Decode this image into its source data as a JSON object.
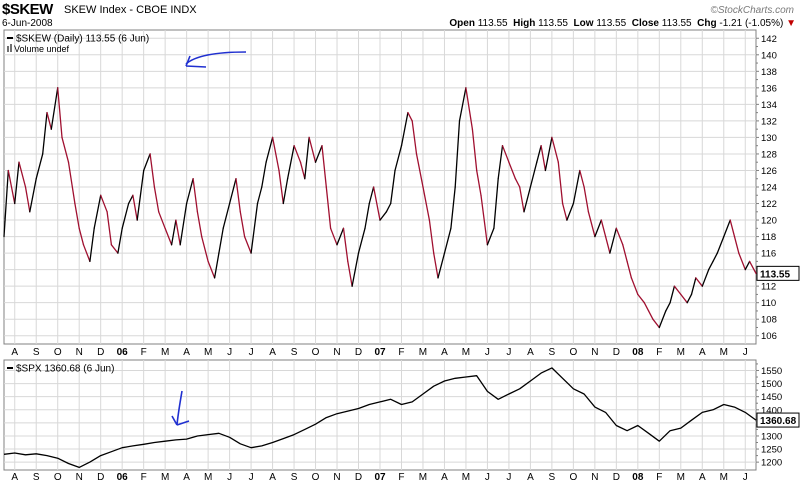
{
  "header": {
    "symbol": "$SKEW",
    "index_name": "SKEW Index - CBOE  INDX",
    "date": "6-Jun-2008",
    "brand": "©StockCharts.com",
    "open_label": "Open",
    "open": "113.55",
    "high_label": "High",
    "high": "113.55",
    "low_label": "Low",
    "low": "113.55",
    "close_label": "Close",
    "close": "113.55",
    "chg_label": "Chg",
    "chg": "-1.21 (-1.05%)"
  },
  "chart_data": [
    {
      "type": "line",
      "legend": "$SKEW (Daily) 113.55 (6 Jun)",
      "sub_legend": "Volume undef",
      "last_value_label": "113.55",
      "ylim": [
        105,
        143
      ],
      "y_ticks": [
        "106",
        "108",
        "110",
        "112",
        "114",
        "116",
        "118",
        "120",
        "122",
        "124",
        "126",
        "128",
        "130",
        "132",
        "134",
        "136",
        "138",
        "140",
        "142"
      ],
      "x_ticks": [
        "A",
        "S",
        "O",
        "N",
        "D",
        "06",
        "F",
        "M",
        "A",
        "M",
        "J",
        "J",
        "A",
        "S",
        "O",
        "N",
        "D",
        "07",
        "F",
        "M",
        "A",
        "M",
        "J",
        "J",
        "A",
        "S",
        "O",
        "N",
        "D",
        "08",
        "F",
        "M",
        "A",
        "M",
        "J"
      ],
      "x_range": [
        0,
        35
      ],
      "series": [
        {
          "colors": {
            "down": "#a01030",
            "up": "#000000"
          },
          "points": [
            [
              0,
              118
            ],
            [
              0.2,
              126
            ],
            [
              0.5,
              122
            ],
            [
              0.7,
              127
            ],
            [
              1,
              124
            ],
            [
              1.2,
              121
            ],
            [
              1.5,
              125
            ],
            [
              1.8,
              128
            ],
            [
              2,
              133
            ],
            [
              2.2,
              131
            ],
            [
              2.5,
              136
            ],
            [
              2.7,
              130
            ],
            [
              3,
              127
            ],
            [
              3.3,
              122
            ],
            [
              3.5,
              119
            ],
            [
              3.7,
              117
            ],
            [
              4,
              115
            ],
            [
              4.2,
              119
            ],
            [
              4.5,
              123
            ],
            [
              4.8,
              121
            ],
            [
              5,
              117
            ],
            [
              5.3,
              116
            ],
            [
              5.5,
              119
            ],
            [
              5.8,
              122
            ],
            [
              6,
              123
            ],
            [
              6.2,
              120
            ],
            [
              6.5,
              126
            ],
            [
              6.8,
              128
            ],
            [
              7,
              124
            ],
            [
              7.2,
              121
            ],
            [
              7.5,
              119
            ],
            [
              7.8,
              117
            ],
            [
              8,
              120
            ],
            [
              8.2,
              117
            ],
            [
              8.5,
              122
            ],
            [
              8.8,
              125
            ],
            [
              9,
              121
            ],
            [
              9.2,
              118
            ],
            [
              9.5,
              115
            ],
            [
              9.8,
              113
            ],
            [
              10,
              116
            ],
            [
              10.2,
              119
            ],
            [
              10.5,
              122
            ],
            [
              10.8,
              125
            ],
            [
              11,
              121
            ],
            [
              11.2,
              118
            ],
            [
              11.5,
              116
            ],
            [
              11.8,
              122
            ],
            [
              12,
              124
            ],
            [
              12.2,
              127
            ],
            [
              12.5,
              130
            ],
            [
              12.8,
              126
            ],
            [
              13,
              122
            ],
            [
              13.2,
              125
            ],
            [
              13.5,
              129
            ],
            [
              13.8,
              127
            ],
            [
              14,
              125
            ],
            [
              14.2,
              130
            ],
            [
              14.5,
              127
            ],
            [
              14.8,
              129
            ],
            [
              15,
              124
            ],
            [
              15.2,
              119
            ],
            [
              15.5,
              117
            ],
            [
              15.8,
              119
            ],
            [
              16,
              115
            ],
            [
              16.2,
              112
            ],
            [
              16.5,
              116
            ],
            [
              16.8,
              119
            ],
            [
              17,
              122
            ],
            [
              17.2,
              124
            ],
            [
              17.5,
              120
            ],
            [
              17.8,
              121
            ],
            [
              18,
              122
            ],
            [
              18.2,
              126
            ],
            [
              18.5,
              129
            ],
            [
              18.8,
              133
            ],
            [
              19,
              132
            ],
            [
              19.2,
              128
            ],
            [
              19.5,
              124
            ],
            [
              19.8,
              120
            ],
            [
              20,
              116
            ],
            [
              20.2,
              113
            ],
            [
              20.5,
              116
            ],
            [
              20.8,
              119
            ],
            [
              21,
              124
            ],
            [
              21.2,
              132
            ],
            [
              21.5,
              136
            ],
            [
              21.8,
              131
            ],
            [
              22,
              126
            ],
            [
              22.2,
              123
            ],
            [
              22.5,
              117
            ],
            [
              22.8,
              119
            ],
            [
              23,
              125
            ],
            [
              23.2,
              129
            ],
            [
              23.5,
              127
            ],
            [
              23.8,
              125
            ],
            [
              24,
              124
            ],
            [
              24.2,
              121
            ],
            [
              24.5,
              124
            ],
            [
              24.8,
              127
            ],
            [
              25,
              129
            ],
            [
              25.2,
              126
            ],
            [
              25.5,
              130
            ],
            [
              25.8,
              127
            ],
            [
              26,
              122
            ],
            [
              26.2,
              120
            ],
            [
              26.5,
              122
            ],
            [
              26.8,
              126
            ],
            [
              27,
              124
            ],
            [
              27.2,
              121
            ],
            [
              27.5,
              118
            ],
            [
              27.8,
              120
            ],
            [
              28,
              118
            ],
            [
              28.2,
              116
            ],
            [
              28.5,
              119
            ],
            [
              28.8,
              117
            ],
            [
              29,
              115
            ],
            [
              29.2,
              113
            ],
            [
              29.5,
              111
            ],
            [
              29.8,
              110
            ],
            [
              30,
              109
            ],
            [
              30.2,
              108
            ],
            [
              30.5,
              107
            ],
            [
              30.8,
              109
            ],
            [
              31,
              110
            ],
            [
              31.2,
              112
            ],
            [
              31.5,
              111
            ],
            [
              31.8,
              110
            ],
            [
              32,
              111
            ],
            [
              32.2,
              113
            ],
            [
              32.5,
              112
            ],
            [
              32.8,
              114
            ],
            [
              33,
              115
            ],
            [
              33.2,
              116
            ],
            [
              33.5,
              118
            ],
            [
              33.8,
              120
            ],
            [
              34,
              118
            ],
            [
              34.2,
              116
            ],
            [
              34.5,
              114
            ],
            [
              34.7,
              115
            ],
            [
              35,
              113.55
            ]
          ]
        }
      ]
    },
    {
      "type": "line",
      "legend": "$SPX 1360.68 (6 Jun)",
      "last_value_label": "1360.68",
      "ylim": [
        1170,
        1590
      ],
      "y_ticks": [
        "1200",
        "1250",
        "1300",
        "1350",
        "1400",
        "1450",
        "1500",
        "1550"
      ],
      "x_ticks": [
        "A",
        "S",
        "O",
        "N",
        "D",
        "06",
        "F",
        "M",
        "A",
        "M",
        "J",
        "J",
        "A",
        "S",
        "O",
        "N",
        "D",
        "07",
        "F",
        "M",
        "A",
        "M",
        "J",
        "J",
        "A",
        "S",
        "O",
        "N",
        "D",
        "08",
        "F",
        "M",
        "A",
        "M",
        "J"
      ],
      "x_range": [
        0,
        35
      ],
      "series": [
        {
          "color": "#000000",
          "points": [
            [
              0,
              1230
            ],
            [
              0.5,
              1235
            ],
            [
              1,
              1228
            ],
            [
              1.5,
              1232
            ],
            [
              2,
              1225
            ],
            [
              2.5,
              1215
            ],
            [
              3,
              1195
            ],
            [
              3.5,
              1180
            ],
            [
              4,
              1200
            ],
            [
              4.5,
              1225
            ],
            [
              5,
              1240
            ],
            [
              5.5,
              1255
            ],
            [
              6,
              1262
            ],
            [
              6.5,
              1268
            ],
            [
              7,
              1275
            ],
            [
              7.5,
              1280
            ],
            [
              8,
              1285
            ],
            [
              8.5,
              1288
            ],
            [
              9,
              1300
            ],
            [
              9.5,
              1305
            ],
            [
              10,
              1310
            ],
            [
              10.5,
              1295
            ],
            [
              11,
              1270
            ],
            [
              11.5,
              1255
            ],
            [
              12,
              1262
            ],
            [
              12.5,
              1275
            ],
            [
              13,
              1290
            ],
            [
              13.5,
              1305
            ],
            [
              14,
              1325
            ],
            [
              14.5,
              1345
            ],
            [
              15,
              1370
            ],
            [
              15.5,
              1385
            ],
            [
              16,
              1395
            ],
            [
              16.5,
              1405
            ],
            [
              17,
              1420
            ],
            [
              17.5,
              1430
            ],
            [
              18,
              1440
            ],
            [
              18.5,
              1420
            ],
            [
              19,
              1430
            ],
            [
              19.5,
              1460
            ],
            [
              20,
              1490
            ],
            [
              20.5,
              1510
            ],
            [
              21,
              1520
            ],
            [
              21.5,
              1525
            ],
            [
              22,
              1530
            ],
            [
              22.5,
              1470
            ],
            [
              23,
              1440
            ],
            [
              23.5,
              1460
            ],
            [
              24,
              1480
            ],
            [
              24.5,
              1510
            ],
            [
              25,
              1540
            ],
            [
              25.5,
              1560
            ],
            [
              26,
              1520
            ],
            [
              26.5,
              1480
            ],
            [
              27,
              1460
            ],
            [
              27.5,
              1410
            ],
            [
              28,
              1390
            ],
            [
              28.5,
              1340
            ],
            [
              29,
              1320
            ],
            [
              29.5,
              1340
            ],
            [
              30,
              1310
            ],
            [
              30.5,
              1280
            ],
            [
              31,
              1320
            ],
            [
              31.5,
              1330
            ],
            [
              32,
              1360
            ],
            [
              32.5,
              1390
            ],
            [
              33,
              1400
            ],
            [
              33.5,
              1420
            ],
            [
              34,
              1410
            ],
            [
              34.5,
              1390
            ],
            [
              35,
              1360.68
            ]
          ]
        }
      ]
    }
  ]
}
